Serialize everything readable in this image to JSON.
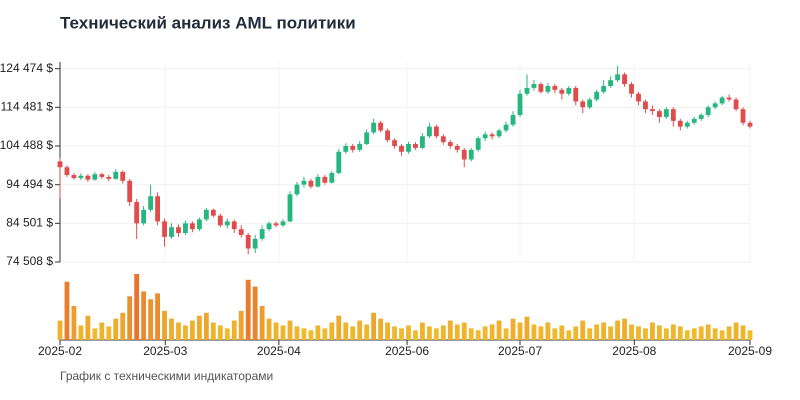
{
  "chart_data": {
    "type": "candlestick",
    "title": "Технический анализ AML политики",
    "subtitle": "График с техническими индикаторами",
    "up_color": "#26b67f",
    "down_color": "#e04b4b",
    "volume_colors": [
      "#f0c92c",
      "#e8712f"
    ],
    "grid": true,
    "xlim": [
      0,
      99
    ],
    "xticks": [
      {
        "value": 0,
        "label": "2025-02"
      },
      {
        "value": 15.1,
        "label": "2025-03"
      },
      {
        "value": 31.4,
        "label": "2025-04"
      },
      {
        "value": 49.8,
        "label": "2025-06"
      },
      {
        "value": 66,
        "label": "2025-07"
      },
      {
        "value": 82.4,
        "label": "2025-08"
      },
      {
        "value": 99,
        "label": "2025-09"
      }
    ],
    "ylim": [
      74508,
      126200
    ],
    "yticks": [
      {
        "value": 74508,
        "label": "74 508 $"
      },
      {
        "value": 84501,
        "label": "84 501 $"
      },
      {
        "value": 94494,
        "label": "94 494 $"
      },
      {
        "value": 104488,
        "label": "104 488 $"
      },
      {
        "value": 114481,
        "label": "114 481 $"
      },
      {
        "value": 124474,
        "label": "124 474 $"
      }
    ],
    "vlim": [
      0,
      70
    ],
    "open": [
      100500,
      99000,
      97000,
      96200,
      96800,
      95800,
      97200,
      96500,
      96000,
      97800,
      95500,
      90000,
      84500,
      88000,
      91500,
      85000,
      81000,
      83500,
      82000,
      84500,
      83000,
      85500,
      88000,
      86500,
      84000,
      85000,
      83000,
      81500,
      78000,
      80500,
      83000,
      84500,
      84000,
      85000,
      92000,
      94500,
      95500,
      94000,
      96500,
      95000,
      97500,
      103000,
      104500,
      103500,
      105000,
      108000,
      110500,
      108500,
      106000,
      104500,
      103000,
      105000,
      104000,
      107000,
      109500,
      107000,
      105500,
      104500,
      103500,
      101000,
      103500,
      106500,
      107500,
      107000,
      108500,
      110000,
      112500,
      118000,
      119500,
      120500,
      118500,
      120000,
      119000,
      118000,
      119500,
      116000,
      114500,
      116500,
      118500,
      120000,
      121500,
      123000,
      120500,
      118000,
      116000,
      114000,
      113500,
      112000,
      114000,
      111000,
      109500,
      110500,
      111500,
      112500,
      114500,
      115500,
      117000,
      116500,
      114000,
      110500
    ],
    "high": [
      101500,
      99500,
      97500,
      97400,
      97200,
      97800,
      97600,
      97000,
      98500,
      98200,
      96000,
      90800,
      89000,
      94500,
      92500,
      85800,
      84500,
      84200,
      85200,
      85000,
      86000,
      88500,
      88300,
      87000,
      85800,
      85500,
      84000,
      82000,
      81500,
      84000,
      85000,
      85000,
      85600,
      92800,
      95200,
      96500,
      96000,
      97200,
      97000,
      98000,
      103800,
      105200,
      105000,
      105800,
      108800,
      111500,
      111000,
      109000,
      106500,
      105000,
      105600,
      105500,
      107800,
      110500,
      110000,
      107500,
      106000,
      105000,
      104000,
      104000,
      107000,
      108200,
      108000,
      109000,
      110800,
      113500,
      119000,
      123000,
      121500,
      121000,
      120800,
      120500,
      119500,
      120000,
      120000,
      116500,
      117000,
      119000,
      121500,
      122500,
      125200,
      123500,
      121000,
      118500,
      116500,
      115000,
      114000,
      114500,
      114500,
      111500,
      111000,
      112000,
      113000,
      115000,
      116000,
      117500,
      117800,
      117000,
      114500,
      111000
    ],
    "low": [
      91000,
      96500,
      95800,
      95700,
      95200,
      95500,
      96000,
      95400,
      95800,
      94800,
      89000,
      80500,
      84000,
      87500,
      84000,
      78500,
      80500,
      81000,
      81500,
      82200,
      82500,
      85000,
      86000,
      83500,
      83200,
      82000,
      80800,
      76500,
      76800,
      80000,
      82500,
      83500,
      83600,
      84800,
      91500,
      93800,
      93500,
      93800,
      94500,
      94800,
      97200,
      102500,
      102800,
      103000,
      104700,
      107500,
      108000,
      105500,
      103800,
      102000,
      102500,
      103500,
      103700,
      106500,
      106500,
      104800,
      103800,
      102800,
      99000,
      100500,
      103000,
      105800,
      106200,
      106500,
      108000,
      109500,
      112000,
      117500,
      118800,
      118000,
      118000,
      118200,
      116500,
      117500,
      115000,
      113000,
      114000,
      116000,
      118000,
      119500,
      121000,
      119800,
      117000,
      115000,
      113000,
      112500,
      110500,
      111500,
      109500,
      108500,
      109000,
      110000,
      111000,
      112000,
      114000,
      115000,
      116000,
      113500,
      109800,
      109000
    ],
    "close": [
      99000,
      97000,
      96200,
      96800,
      95800,
      97200,
      96500,
      96000,
      97800,
      95500,
      90000,
      84500,
      88000,
      91500,
      85000,
      81000,
      83500,
      82000,
      84500,
      83000,
      85500,
      88000,
      86500,
      84000,
      85000,
      83000,
      81500,
      78000,
      80500,
      83000,
      84500,
      84000,
      85000,
      92000,
      94500,
      95500,
      94000,
      96500,
      95000,
      97500,
      103000,
      104500,
      103500,
      105000,
      108000,
      110500,
      108500,
      106000,
      104500,
      103000,
      105000,
      104000,
      107000,
      109500,
      107000,
      105500,
      104500,
      103500,
      101000,
      103500,
      106500,
      107500,
      107000,
      108500,
      110000,
      112500,
      118000,
      119500,
      120500,
      118500,
      120000,
      119000,
      118000,
      119500,
      116000,
      114500,
      116500,
      118500,
      120000,
      121500,
      123000,
      120500,
      118000,
      116000,
      114000,
      113500,
      112000,
      114000,
      111000,
      109500,
      110500,
      111500,
      112500,
      114500,
      115500,
      117000,
      116500,
      114000,
      110500,
      109500
    ],
    "volume": [
      20,
      60,
      35,
      15,
      25,
      12,
      18,
      14,
      22,
      28,
      45,
      68,
      50,
      42,
      48,
      30,
      22,
      18,
      15,
      20,
      25,
      28,
      18,
      15,
      12,
      20,
      30,
      62,
      55,
      35,
      22,
      18,
      15,
      20,
      14,
      12,
      10,
      15,
      12,
      18,
      25,
      18,
      14,
      20,
      16,
      28,
      22,
      18,
      14,
      12,
      15,
      10,
      18,
      14,
      12,
      15,
      20,
      16,
      18,
      12,
      10,
      14,
      16,
      20,
      12,
      22,
      18,
      24,
      16,
      14,
      18,
      12,
      15,
      10,
      14,
      20,
      12,
      16,
      18,
      14,
      20,
      22,
      16,
      14,
      12,
      18,
      15,
      12,
      16,
      14,
      10,
      12,
      14,
      16,
      12,
      10,
      14,
      18,
      15,
      10
    ]
  }
}
